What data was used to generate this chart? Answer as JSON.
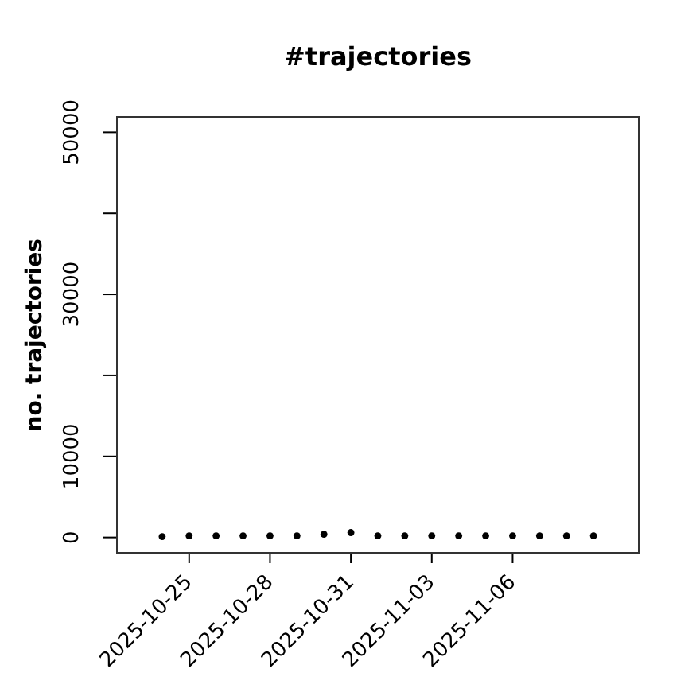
{
  "chart_data": {
    "type": "scatter",
    "title": "#trajectories",
    "ylabel": "no. trajectories",
    "x": [
      "2025-10-24",
      "2025-10-25",
      "2025-10-26",
      "2025-10-27",
      "2025-10-28",
      "2025-10-29",
      "2025-10-30",
      "2025-10-31",
      "2025-11-01",
      "2025-11-02",
      "2025-11-03",
      "2025-11-04",
      "2025-11-05",
      "2025-11-06",
      "2025-11-07",
      "2025-11-08",
      "2025-11-09"
    ],
    "values": [
      100,
      200,
      200,
      200,
      200,
      200,
      400,
      600,
      200,
      200,
      200,
      200,
      200,
      200,
      200,
      200,
      200
    ],
    "color": "#000000",
    "marker": "circle",
    "xlim": [
      "2025-10-22T07:00",
      "2025-11-10T17:00"
    ],
    "xticks": [
      "2025-10-25",
      "2025-10-28",
      "2025-10-31",
      "2025-11-03",
      "2025-11-06"
    ],
    "ylim": [
      -2000,
      52000
    ],
    "yticks": [
      0,
      10000,
      {
        "value": 20000,
        "label": null
      },
      30000,
      {
        "value": 40000,
        "label": null
      },
      50000
    ]
  }
}
